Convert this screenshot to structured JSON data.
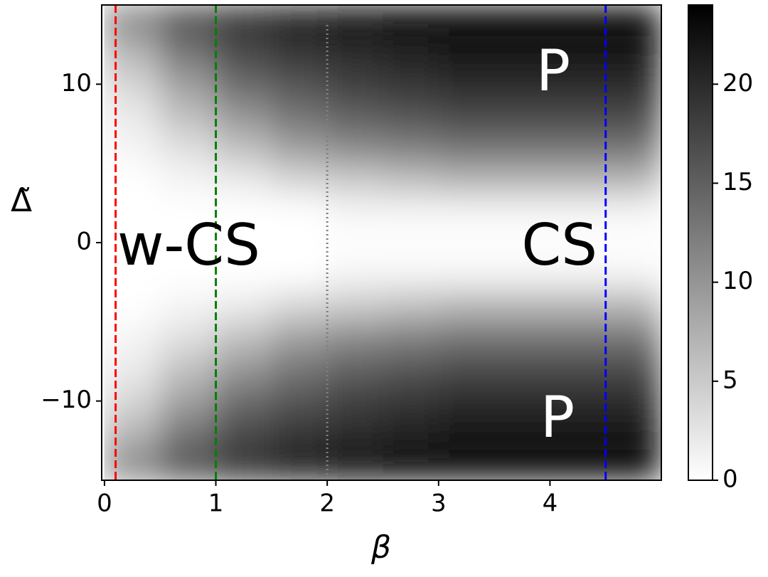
{
  "chart_data": {
    "type": "heatmap",
    "xlabel": "β",
    "ylabel": "Δ̃",
    "x": [
      0.25,
      0.75,
      1.25,
      1.75,
      2.25,
      2.75,
      3.25,
      3.75,
      4.25,
      4.75
    ],
    "y": [
      -14,
      -12,
      -10,
      -8,
      -6,
      -4,
      -2,
      0,
      2,
      4,
      6,
      8,
      10,
      12,
      14
    ],
    "z": [
      [
        11,
        16,
        19,
        21,
        22,
        23,
        23,
        23,
        23,
        23
      ],
      [
        7,
        13,
        17,
        19,
        20,
        21,
        22,
        22,
        22,
        22
      ],
      [
        4,
        9,
        14,
        16,
        18,
        19,
        20,
        20,
        20,
        20
      ],
      [
        2,
        6,
        10,
        13,
        15,
        16,
        17,
        17,
        17,
        17
      ],
      [
        1,
        3,
        6,
        9,
        11,
        12,
        13,
        13,
        13,
        13
      ],
      [
        0,
        1,
        2,
        4,
        5,
        6,
        7,
        7,
        7,
        7
      ],
      [
        0,
        0,
        0,
        0,
        1,
        1,
        1,
        1,
        1,
        1
      ],
      [
        0,
        0,
        0,
        0,
        0,
        0,
        0,
        0,
        0,
        0
      ],
      [
        0,
        0,
        0,
        0,
        1,
        1,
        1,
        1,
        1,
        1
      ],
      [
        0,
        1,
        2,
        4,
        5,
        6,
        7,
        7,
        7,
        7
      ],
      [
        1,
        3,
        6,
        9,
        11,
        12,
        13,
        13,
        13,
        13
      ],
      [
        2,
        6,
        10,
        13,
        15,
        16,
        17,
        17,
        17,
        17
      ],
      [
        4,
        9,
        14,
        16,
        18,
        19,
        20,
        20,
        20,
        20
      ],
      [
        7,
        13,
        17,
        19,
        20,
        21,
        22,
        22,
        22,
        22
      ],
      [
        11,
        16,
        19,
        21,
        22,
        23,
        23,
        23,
        23,
        23
      ]
    ],
    "xlim": [
      -0.025,
      5
    ],
    "ylim": [
      -15,
      15
    ],
    "xticks": [
      0,
      1,
      2,
      3,
      4
    ],
    "yticks": [
      {
        "value": -10,
        "label": "−10"
      },
      0,
      10
    ],
    "colorbar": {
      "lim": [
        0,
        24
      ],
      "ticks": [
        0,
        5,
        10,
        15,
        20
      ]
    },
    "vlines": [
      {
        "x": 0.1,
        "color": "#ff0000",
        "style": "dashed"
      },
      {
        "x": 1,
        "color": "#008000",
        "style": "dashed"
      },
      {
        "x": 2,
        "color": "#808080",
        "style": "dotted"
      },
      {
        "x": 4.5,
        "color": "#0000ff",
        "style": "dashed"
      }
    ],
    "annotations": [
      {
        "text": "w-CS",
        "color": "#000000"
      },
      {
        "text": "CS",
        "color": "#000000"
      },
      {
        "text": "P",
        "color": "#ffffff"
      },
      {
        "text": "P",
        "color": "#ffffff"
      }
    ]
  }
}
